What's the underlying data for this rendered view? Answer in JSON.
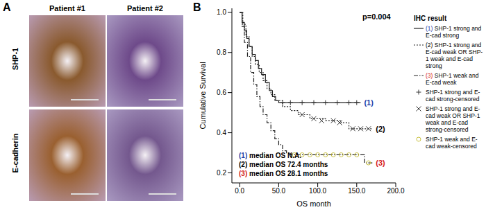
{
  "panel_a": {
    "label": "A",
    "columns": [
      "Patient #1",
      "Patient #2"
    ],
    "rows": [
      "SHP-1",
      "E-cadherin"
    ]
  },
  "chart_data": {
    "type": "line",
    "panel_label": "B",
    "x_label": "OS month",
    "y_label": "Cumulative Survival",
    "xlim": [
      -10,
      200
    ],
    "xticks": [
      {
        "value": 0,
        "label": "0.0"
      },
      {
        "value": 50,
        "label": "50.0"
      },
      {
        "value": 100,
        "label": "100.0"
      },
      {
        "value": 150,
        "label": "150.0"
      },
      {
        "value": 200,
        "label": "200.0"
      }
    ],
    "ylim": [
      0.15,
      1.02
    ],
    "yticks": [
      0.2,
      0.4,
      0.6,
      0.8,
      {
        "value": 1.0,
        "label": "1.0"
      }
    ],
    "legend_title": "IHC result",
    "annotations": [
      "p=0.004",
      "(1) median OS N.A.",
      "(2) median OS 72.4 months",
      "(3) median OS 28.1 months"
    ],
    "series": [
      {
        "name": "(1) SHP-1 strong and E-cad strong",
        "label": "(1)",
        "censored_name": "SHP-1 strong and E-cad strong-censored",
        "color": "#1f3fa8",
        "line_style": "solid",
        "marker": "plus",
        "x": [
          0,
          3,
          6,
          9,
          12,
          16,
          20,
          24,
          28,
          33,
          38,
          42,
          46,
          50,
          155
        ],
        "values": [
          1,
          0.95,
          0.91,
          0.87,
          0.83,
          0.79,
          0.76,
          0.72,
          0.69,
          0.65,
          0.61,
          0.58,
          0.56,
          0.55,
          0.55
        ],
        "censored_x": [
          55,
          65,
          80,
          95,
          110,
          125,
          140,
          150
        ],
        "censored_y": [
          0.55,
          0.55,
          0.55,
          0.55,
          0.55,
          0.55,
          0.55,
          0.55
        ]
      },
      {
        "name": "(2) SHP-1 strong and E-cad weak OR SHP-1 weak and E-cad strong",
        "label": "(2)",
        "censored_name": "SHP-1 strong and E-cad weak OR SHP-1 weak and E-cad strong-censored",
        "color": "#000000",
        "line_style": "dotted",
        "marker": "x",
        "x": [
          0,
          4,
          8,
          12,
          16,
          20,
          25,
          30,
          35,
          40,
          45,
          55,
          65,
          75,
          90,
          110,
          130,
          140,
          170
        ],
        "values": [
          1,
          0.94,
          0.88,
          0.83,
          0.78,
          0.74,
          0.7,
          0.66,
          0.62,
          0.59,
          0.56,
          0.53,
          0.51,
          0.49,
          0.47,
          0.46,
          0.45,
          0.42,
          0.42
        ],
        "censored_x": [
          80,
          95,
          105,
          120,
          128,
          145,
          155,
          165
        ],
        "censored_y": [
          0.49,
          0.47,
          0.46,
          0.46,
          0.45,
          0.42,
          0.42,
          0.42
        ]
      },
      {
        "name": "(3) SHP-1 weak and E-cad weak",
        "label": "(3)",
        "censored_name": "SHP-1 weak and E-cad weak-censored",
        "color": "#d42020",
        "line_style": "dashdot",
        "marker": "circle",
        "x": [
          0,
          3,
          6,
          10,
          14,
          18,
          22,
          26,
          30,
          35,
          40,
          45,
          50,
          55,
          60,
          65,
          160,
          170
        ],
        "values": [
          1,
          0.93,
          0.85,
          0.78,
          0.7,
          0.64,
          0.58,
          0.53,
          0.49,
          0.45,
          0.41,
          0.37,
          0.34,
          0.31,
          0.3,
          0.29,
          0.25,
          0.25
        ],
        "censored_x": [
          70,
          80,
          90,
          100,
          110,
          120,
          130,
          140,
          150,
          165
        ],
        "censored_y": [
          0.29,
          0.29,
          0.29,
          0.29,
          0.29,
          0.29,
          0.29,
          0.29,
          0.29,
          0.25
        ]
      }
    ]
  }
}
